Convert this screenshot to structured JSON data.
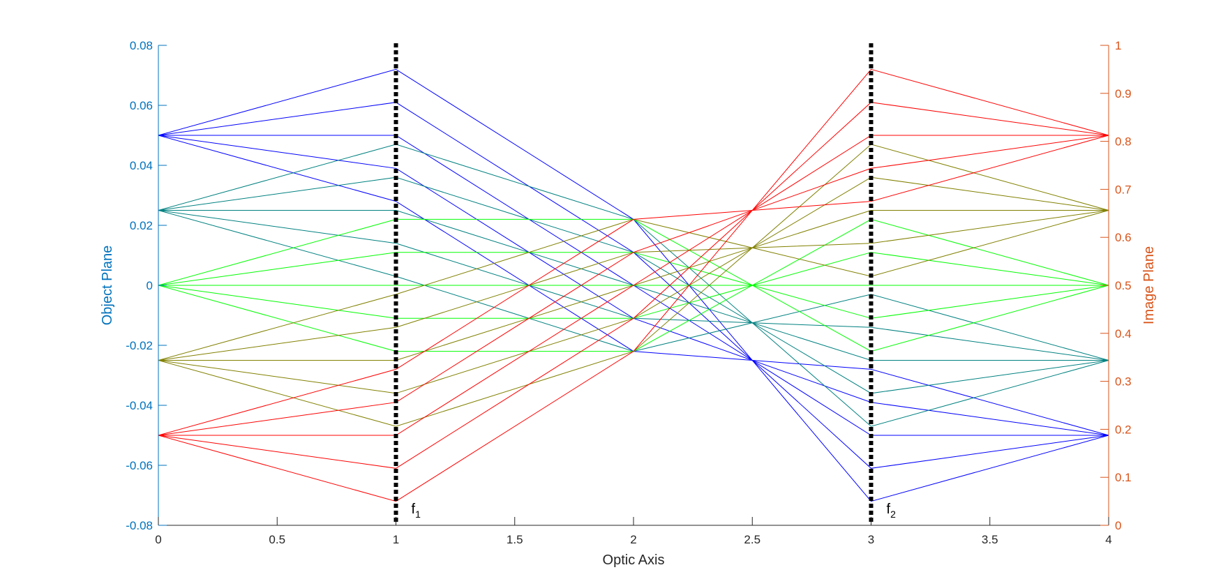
{
  "chart_data": {
    "type": "line",
    "xlabel": "Optic Axis",
    "ylabel_left": "Object Plane",
    "ylabel_right": "Image Plane",
    "xlim": [
      0,
      4
    ],
    "ylim_left": [
      -0.08,
      0.08
    ],
    "ylim_right": [
      0,
      1
    ],
    "x_ticks": [
      "0",
      "0.5",
      "1",
      "1.5",
      "2",
      "2.5",
      "3",
      "3.5",
      "4"
    ],
    "y_left_ticks": [
      "0.08",
      "0.06",
      "0.04",
      "0.02",
      "0",
      "-0.02",
      "-0.04",
      "-0.06",
      "-0.08"
    ],
    "y_right_ticks": [
      "1",
      "0.9",
      "0.8",
      "0.7",
      "0.6",
      "0.5",
      "0.4",
      "0.3",
      "0.2",
      "0.1",
      "0"
    ],
    "lenses": [
      {
        "x": 1,
        "label": "f",
        "subscript": "1"
      },
      {
        "x": 3,
        "label": "f",
        "subscript": "2"
      }
    ],
    "colors": {
      "left_axis": "#0072BD",
      "right_axis": "#D95319",
      "bottom_axis": "#262626",
      "lens": "#000000"
    },
    "ray_groups": [
      {
        "color": "#0000ff",
        "object_height": 0.05,
        "lens1_heights": [
          0.072,
          0.061,
          0.05,
          0.039,
          0.028
        ]
      },
      {
        "color": "#008080",
        "object_height": 0.025,
        "lens1_heights": [
          0.047,
          0.036,
          0.025,
          0.014,
          0.003
        ]
      },
      {
        "color": "#00ff00",
        "object_height": 0,
        "lens1_heights": [
          0.022,
          0.011,
          0,
          -0.011,
          -0.022
        ]
      },
      {
        "color": "#808000",
        "object_height": -0.025,
        "lens1_heights": [
          -0.003,
          -0.014,
          -0.025,
          -0.036,
          -0.047
        ]
      },
      {
        "color": "#ff0000",
        "object_height": -0.05,
        "lens1_heights": [
          -0.028,
          -0.039,
          -0.05,
          -0.061,
          -0.072
        ]
      }
    ]
  }
}
